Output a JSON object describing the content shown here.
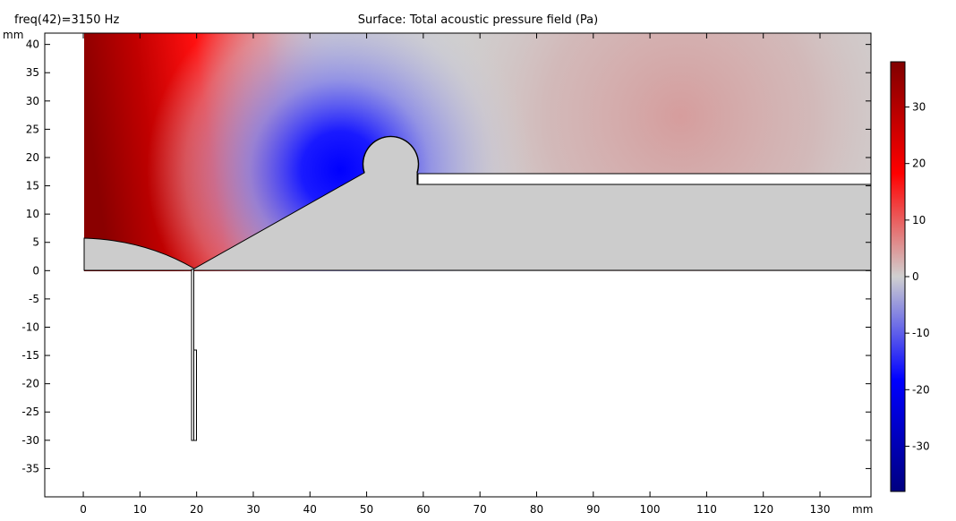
{
  "header": {
    "left_text": "freq(42)=3150 Hz",
    "title": "Surface: Total acoustic pressure field (Pa)"
  },
  "axes": {
    "x_unit": "mm",
    "y_unit": "mm",
    "x_ticks": [
      0,
      10,
      20,
      30,
      40,
      50,
      60,
      70,
      80,
      90,
      100,
      110,
      120,
      130
    ],
    "y_ticks": [
      40,
      35,
      30,
      25,
      20,
      15,
      10,
      5,
      0,
      -5,
      -10,
      -15,
      -20,
      -25,
      -30,
      -35
    ],
    "xlim": [
      -6.8,
      139
    ],
    "ylim": [
      -40,
      42
    ]
  },
  "colorbar": {
    "ticks": [
      30,
      20,
      10,
      0,
      -10,
      -20,
      -30
    ],
    "range": [
      -38,
      38
    ],
    "colors": {
      "max": "#800000",
      "pos": "#ff0000",
      "zero": "#d0d0d0",
      "neg": "#0000ff",
      "min": "#000080"
    }
  },
  "chart_data": {
    "type": "heatmap",
    "title": "Surface: Total acoustic pressure field (Pa)",
    "annotation": "freq(42)=3150 Hz",
    "xlabel": "mm",
    "ylabel": "mm",
    "field_samples": [
      {
        "x": 0,
        "y": 40,
        "value": 36
      },
      {
        "x": 20,
        "y": 20,
        "value": 22
      },
      {
        "x": 47,
        "y": 17,
        "value": -24
      },
      {
        "x": 60,
        "y": 35,
        "value": 0
      },
      {
        "x": 100,
        "y": 30,
        "value": 7
      },
      {
        "x": 138,
        "y": 30,
        "value": 1
      }
    ],
    "colorbar_range": [
      -38,
      38
    ],
    "geometry": {
      "solid_body_outline": [
        [
          0,
          6
        ],
        [
          19.5,
          0.3
        ],
        [
          49.5,
          17.3
        ],
        [
          59,
          17.5
        ],
        [
          59,
          15.4
        ],
        [
          139,
          15.4
        ],
        [
          139,
          0
        ],
        [
          0,
          0
        ]
      ],
      "bump_center": [
        54.3,
        17.2
      ],
      "bump_radius": 4.9,
      "slot": {
        "x": [
          59.3,
          139
        ],
        "y": [
          15.4,
          17.4
        ]
      },
      "stem": {
        "x": [
          19.3,
          19.8
        ],
        "y": [
          -30,
          0
        ]
      },
      "stem_side": {
        "x": [
          19.8,
          20.3
        ],
        "y": [
          -30,
          -14
        ]
      }
    }
  }
}
